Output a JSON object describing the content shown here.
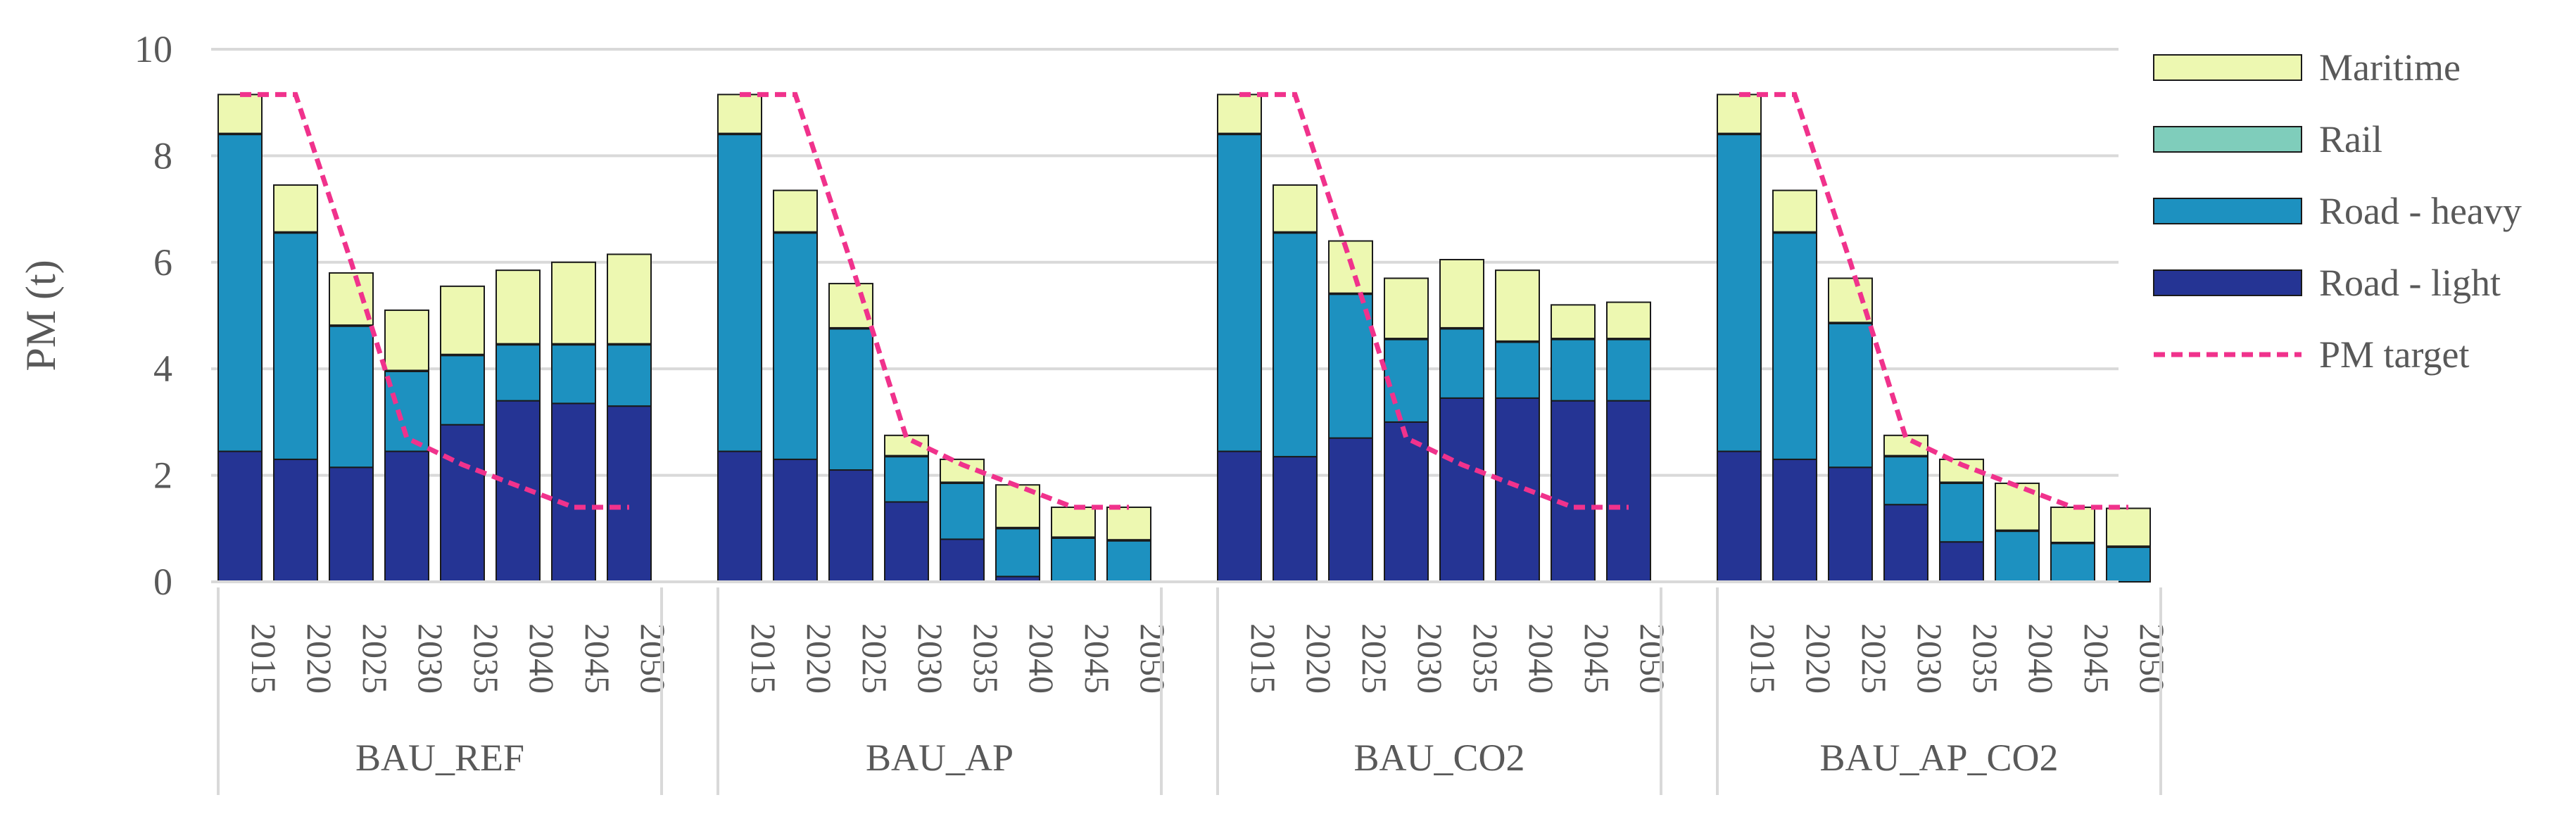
{
  "chart_data": {
    "type": "bar",
    "stacked": true,
    "ylabel": "PM (t)",
    "ylim": [
      0,
      10
    ],
    "yticks": [
      0,
      2,
      4,
      6,
      8,
      10
    ],
    "grid": true,
    "legend_position": "right",
    "years": [
      "2015",
      "2020",
      "2025",
      "2030",
      "2035",
      "2040",
      "2045",
      "2050"
    ],
    "scenarios": [
      "BAU_REF",
      "BAU_AP",
      "BAU_CO2",
      "BAU_AP_CO2"
    ],
    "legend": [
      "Maritime",
      "Rail",
      "Road - heavy",
      "Road - light",
      "PM target"
    ],
    "colors": {
      "Road - light": "#253494",
      "Road - heavy": "#1d91c0",
      "Rail": "#7fcdbb",
      "Maritime": "#edf8b1",
      "PM target": "#f0328c"
    },
    "series": [
      {
        "name": "Road - light",
        "values": [
          [
            2.45,
            2.3,
            2.15,
            2.45,
            2.95,
            3.4,
            3.35,
            3.3
          ],
          [
            2.45,
            2.3,
            2.1,
            1.5,
            0.8,
            0.1,
            0.0,
            0.0
          ],
          [
            2.45,
            2.35,
            2.7,
            3.0,
            3.45,
            3.45,
            3.4,
            3.4
          ],
          [
            2.45,
            2.3,
            2.15,
            1.45,
            0.75,
            0.0,
            0.0,
            0.0
          ]
        ]
      },
      {
        "name": "Road - heavy",
        "values": [
          [
            5.95,
            4.25,
            2.65,
            1.5,
            1.3,
            1.05,
            1.1,
            1.15
          ],
          [
            5.95,
            4.25,
            2.65,
            0.85,
            1.05,
            0.9,
            0.82,
            0.77
          ],
          [
            5.95,
            4.2,
            2.7,
            1.55,
            1.3,
            1.05,
            1.15,
            1.15
          ],
          [
            5.95,
            4.25,
            2.7,
            0.9,
            1.1,
            0.95,
            0.72,
            0.65
          ]
        ]
      },
      {
        "name": "Rail",
        "values": [
          [
            0.02,
            0.02,
            0.02,
            0.02,
            0.02,
            0.02,
            0.02,
            0.02
          ],
          [
            0.02,
            0.02,
            0.02,
            0.02,
            0.02,
            0.02,
            0.02,
            0.02
          ],
          [
            0.02,
            0.02,
            0.02,
            0.02,
            0.02,
            0.02,
            0.02,
            0.02
          ],
          [
            0.02,
            0.02,
            0.02,
            0.02,
            0.02,
            0.02,
            0.02,
            0.02
          ]
        ]
      },
      {
        "name": "Maritime",
        "values": [
          [
            0.73,
            0.88,
            0.98,
            1.13,
            1.28,
            1.38,
            1.53,
            1.68
          ],
          [
            0.73,
            0.78,
            0.83,
            0.38,
            0.43,
            0.8,
            0.56,
            0.61
          ],
          [
            0.73,
            0.88,
            0.98,
            1.13,
            1.28,
            1.33,
            0.63,
            0.68
          ],
          [
            0.73,
            0.78,
            0.83,
            0.38,
            0.43,
            0.88,
            0.66,
            0.71
          ]
        ]
      },
      {
        "name": "PM target",
        "type": "line",
        "style": "dashed",
        "values": [
          [
            9.15,
            9.15,
            6.0,
            2.7,
            2.2,
            1.8,
            1.4,
            1.4
          ],
          [
            9.15,
            9.15,
            6.0,
            2.7,
            2.2,
            1.8,
            1.4,
            1.4
          ],
          [
            9.15,
            9.15,
            6.0,
            2.7,
            2.2,
            1.8,
            1.4,
            1.4
          ],
          [
            9.15,
            9.15,
            6.0,
            2.7,
            2.2,
            1.8,
            1.4,
            1.4
          ]
        ]
      }
    ]
  }
}
